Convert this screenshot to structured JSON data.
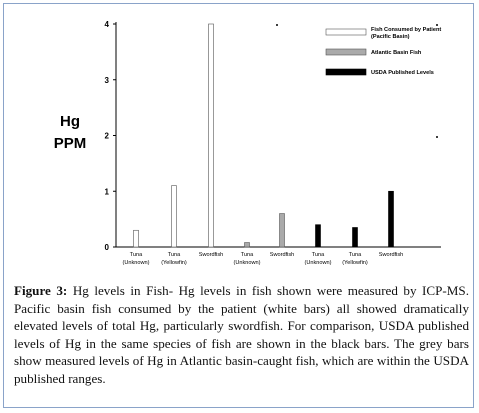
{
  "chart_data": {
    "type": "bar",
    "ylabel_line1": "Hg",
    "ylabel_line2": "PPM",
    "ylim": [
      0,
      4
    ],
    "yticks": [
      "0",
      "1",
      "2",
      "3",
      "4"
    ],
    "bars": [
      {
        "label": "Tuna\n(Unknown)",
        "value": 0.3,
        "group": "Fish Consumed by Patient (Pacific Basin)"
      },
      {
        "label": "Tuna\n(Yellowfin)",
        "value": 1.1,
        "group": "Fish Consumed by Patient (Pacific Basin)"
      },
      {
        "label": "Swordfish",
        "value": 4.0,
        "group": "Fish Consumed by Patient (Pacific Basin)"
      },
      {
        "label": "Tuna\n(Unknown)",
        "value": 0.08,
        "group": "Atlantic Basin Fish"
      },
      {
        "label": "Swordfish",
        "value": 0.6,
        "group": "Atlantic Basin Fish"
      },
      {
        "label": "Tuna\n(Unknown)",
        "value": 0.4,
        "group": "USDA Published Levels"
      },
      {
        "label": "Tuna\n(Yellowfin)",
        "value": 0.35,
        "group": "USDA Published Levels"
      },
      {
        "label": "Swordfish",
        "value": 1.0,
        "group": "USDA Published Levels"
      }
    ],
    "legend": [
      {
        "name": "Fish Consumed by Patient (Pacific Basin)",
        "color": "#ffffff"
      },
      {
        "name": "Atlantic Basin Fish",
        "color": "#aaaaaa"
      },
      {
        "name": "USDA Published Levels",
        "color": "#000000"
      }
    ],
    "legend_position": "top-right"
  },
  "caption": {
    "label": "Figure 3:",
    "text": "Hg levels in Fish- Hg levels in fish shown were measured by ICP-MS. Pacific basin fish consumed by the patient (white bars) all showed dramatically elevated levels of total Hg, particularly swordfish. For comparison, USDA published levels of Hg in the same species of fish are shown in the black bars. The grey bars show measured levels of Hg in Atlantic basin-caught fish, which are within the USDA published ranges."
  }
}
